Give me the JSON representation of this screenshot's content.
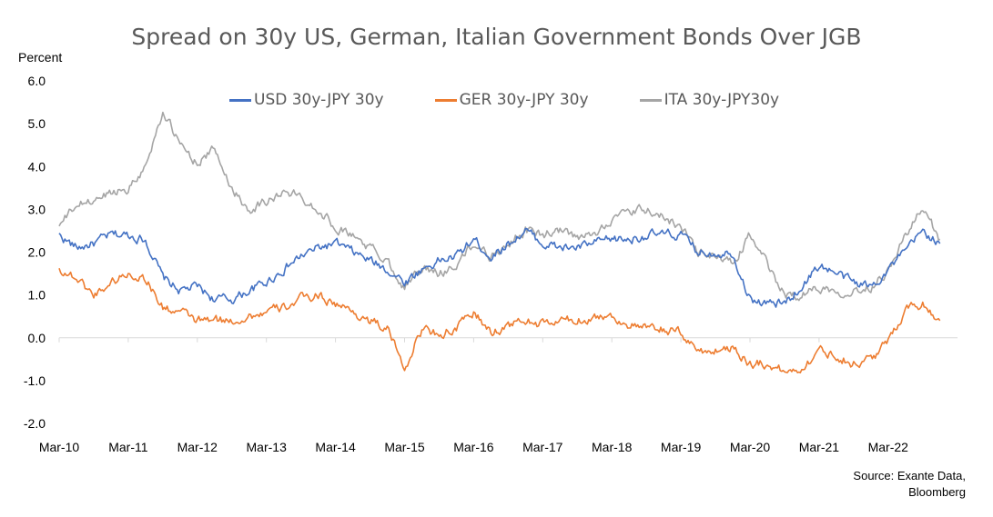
{
  "chart_data": {
    "type": "line",
    "title": "Spread on 30y US, German, Italian Government Bonds Over JGB",
    "ylabel": "Percent",
    "xlabel": "",
    "ylim": [
      -2.0,
      6.0
    ],
    "yticks": [
      "6.0",
      "5.0",
      "4.0",
      "3.0",
      "2.0",
      "1.0",
      "0.0",
      "-1.0",
      "-2.0"
    ],
    "xticks": [
      "Mar-10",
      "Mar-11",
      "Mar-12",
      "Mar-13",
      "Mar-14",
      "Mar-15",
      "Mar-16",
      "Mar-17",
      "Mar-18",
      "Mar-19",
      "Mar-20",
      "Mar-21",
      "Mar-22"
    ],
    "grid": false,
    "legend_position": "top",
    "source": [
      "Source: Exante Data,",
      "Bloomberg"
    ],
    "x": [
      "Mar-10",
      "Jun-10",
      "Sep-10",
      "Dec-10",
      "Mar-11",
      "Jun-11",
      "Sep-11",
      "Dec-11",
      "Mar-12",
      "Jun-12",
      "Sep-12",
      "Dec-12",
      "Mar-13",
      "Jun-13",
      "Sep-13",
      "Dec-13",
      "Mar-14",
      "Jun-14",
      "Sep-14",
      "Dec-14",
      "Mar-15",
      "Jun-15",
      "Sep-15",
      "Dec-15",
      "Mar-16",
      "Jun-16",
      "Sep-16",
      "Dec-16",
      "Mar-17",
      "Jun-17",
      "Sep-17",
      "Dec-17",
      "Mar-18",
      "Jun-18",
      "Sep-18",
      "Dec-18",
      "Mar-19",
      "Jun-19",
      "Sep-19",
      "Dec-19",
      "Mar-20",
      "Jun-20",
      "Sep-20",
      "Dec-20",
      "Mar-21",
      "Jun-21",
      "Sep-21",
      "Dec-21",
      "Mar-22",
      "Jun-22",
      "Sep-22",
      "Nov-22"
    ],
    "series": [
      {
        "name": "USD 30y-JPY 30y",
        "color": "#4472C4",
        "values": [
          2.4,
          2.1,
          2.2,
          2.4,
          2.4,
          2.3,
          1.4,
          1.1,
          1.2,
          0.9,
          0.9,
          1.1,
          1.3,
          1.6,
          1.9,
          2.1,
          2.2,
          2.0,
          1.8,
          1.6,
          1.3,
          1.6,
          1.8,
          1.9,
          2.3,
          1.9,
          2.2,
          2.5,
          2.2,
          2.1,
          2.1,
          2.2,
          2.3,
          2.3,
          2.4,
          2.4,
          2.4,
          2.0,
          2.0,
          2.0,
          0.9,
          0.8,
          0.8,
          1.2,
          1.7,
          1.5,
          1.3,
          1.2,
          1.6,
          2.0,
          2.5,
          2.2
        ]
      },
      {
        "name": "GER 30y-JPY 30y",
        "color": "#ED7D31",
        "values": [
          1.6,
          1.4,
          1.0,
          1.3,
          1.5,
          1.4,
          0.7,
          0.6,
          0.4,
          0.4,
          0.4,
          0.5,
          0.6,
          0.7,
          0.9,
          1.0,
          0.8,
          0.6,
          0.4,
          0.2,
          -0.7,
          0.2,
          0.1,
          0.2,
          0.6,
          0.1,
          0.3,
          0.4,
          0.3,
          0.4,
          0.4,
          0.5,
          0.5,
          0.3,
          0.2,
          0.2,
          0.1,
          -0.3,
          -0.3,
          -0.2,
          -0.6,
          -0.6,
          -0.8,
          -0.7,
          -0.3,
          -0.4,
          -0.6,
          -0.5,
          -0.1,
          0.7,
          0.8,
          0.4
        ]
      },
      {
        "name": "ITA 30y-JPY30y",
        "color": "#A5A5A5",
        "values": [
          2.6,
          3.1,
          3.2,
          3.4,
          3.5,
          4.0,
          5.3,
          4.5,
          4.1,
          4.4,
          3.5,
          3.0,
          3.2,
          3.4,
          3.3,
          3.0,
          2.6,
          2.4,
          2.1,
          1.8,
          1.2,
          1.6,
          1.5,
          1.7,
          2.2,
          1.9,
          2.2,
          2.5,
          2.4,
          2.5,
          2.3,
          2.4,
          2.8,
          2.9,
          3.0,
          2.8,
          2.6,
          2.0,
          1.9,
          1.7,
          2.4,
          1.7,
          1.0,
          1.0,
          1.2,
          1.1,
          1.1,
          1.2,
          1.6,
          2.4,
          3.0,
          2.3
        ]
      }
    ]
  }
}
